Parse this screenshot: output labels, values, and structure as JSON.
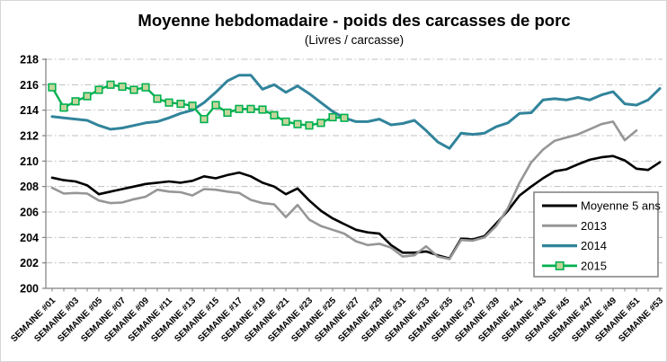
{
  "chart_data": {
    "type": "line",
    "title": "Moyenne hebdomadaire - poids des carcasses de porc",
    "subtitle": "(Livres / carcasse)",
    "grid": true,
    "legend_position": "inside-bottom-right",
    "y_axis": {
      "min": 200,
      "max": 218,
      "step": 2,
      "ticks": [
        200,
        202,
        204,
        206,
        208,
        210,
        212,
        214,
        216,
        218
      ]
    },
    "x_axis": {
      "weeks_total": 53,
      "tick_labels": [
        "SEMAINE #01",
        "SEMAINE #03",
        "SEMAINE #05",
        "SEMAINE #07",
        "SEMAINE #09",
        "SEMAINE #11",
        "SEMAINE #13",
        "SEMAINE #15",
        "SEMAINE #17",
        "SEMAINE #19",
        "SEMAINE #21",
        "SEMAINE #23",
        "SEMAINE #25",
        "SEMAINE #27",
        "SEMAINE #29",
        "SEMAINE #31",
        "SEMAINE #33",
        "SEMAINE #35",
        "SEMAINE #37",
        "SEMAINE #39",
        "SEMAINE #41",
        "SEMAINE #43",
        "SEMAINE #45",
        "SEMAINE #47",
        "SEMAINE #49",
        "SEMAINE #51",
        "SEMAINE #53"
      ]
    },
    "colors": {
      "axis": "#808080",
      "gridline": "#bfbfbf",
      "legend_border": "#7f7f7f",
      "moyenne": "#000000",
      "y2013": "#969696",
      "y2014": "#31849B",
      "y2015": "#00B050",
      "y2015_marker_fill": "#C3D69B"
    },
    "series": [
      {
        "name": "Moyenne 5 ans",
        "color": "#000000",
        "line_width": 2.6,
        "marker": "none",
        "start_week": 1,
        "values": [
          208.7,
          208.5,
          208.4,
          208.1,
          207.4,
          207.6,
          207.8,
          208.0,
          208.2,
          208.3,
          208.4,
          208.3,
          208.45,
          208.8,
          208.65,
          208.9,
          209.1,
          208.8,
          208.3,
          208.0,
          207.4,
          207.85,
          206.9,
          206.1,
          205.5,
          205.05,
          204.6,
          204.4,
          204.3,
          203.4,
          202.8,
          202.8,
          202.9,
          202.6,
          202.35,
          203.9,
          203.85,
          204.1,
          205.1,
          206.1,
          207.3,
          208.0,
          208.65,
          209.2,
          209.35,
          209.75,
          210.1,
          210.3,
          210.4,
          210.05,
          209.4,
          209.3,
          209.9
        ]
      },
      {
        "name": "2013",
        "color": "#969696",
        "line_width": 2.6,
        "marker": "none",
        "start_week": 1,
        "values": [
          207.9,
          207.45,
          207.5,
          207.45,
          206.9,
          206.7,
          206.75,
          207.0,
          207.2,
          207.75,
          207.6,
          207.55,
          207.3,
          207.8,
          207.75,
          207.6,
          207.5,
          206.95,
          206.7,
          206.6,
          205.6,
          206.55,
          205.4,
          204.9,
          204.6,
          204.3,
          203.7,
          203.4,
          203.5,
          203.2,
          202.5,
          202.6,
          203.3,
          202.5,
          202.3,
          203.8,
          203.75,
          204.0,
          204.9,
          206.3,
          208.3,
          209.9,
          210.9,
          211.6,
          211.85,
          212.1,
          212.5,
          212.9,
          213.1,
          211.65,
          212.4
        ]
      },
      {
        "name": "2014",
        "color": "#31849B",
        "line_width": 3,
        "marker": "none",
        "start_week": 1,
        "values": [
          213.5,
          213.4,
          213.3,
          213.2,
          212.8,
          212.5,
          212.6,
          212.8,
          213.0,
          213.1,
          213.4,
          213.75,
          214.0,
          214.6,
          215.4,
          216.3,
          216.75,
          216.75,
          215.65,
          216.0,
          215.4,
          215.9,
          215.3,
          214.6,
          213.9,
          213.4,
          213.1,
          213.1,
          213.3,
          212.85,
          212.95,
          213.2,
          212.4,
          211.5,
          211.0,
          212.2,
          212.1,
          212.2,
          212.7,
          213.0,
          213.75,
          213.8,
          214.8,
          214.9,
          214.8,
          215.0,
          214.8,
          215.2,
          215.45,
          214.5,
          214.4,
          214.8,
          215.7
        ]
      },
      {
        "name": "2015",
        "color": "#00B050",
        "line_width": 2.4,
        "marker": "square",
        "marker_fill": "#C3D69B",
        "marker_border": "#00B050",
        "start_week": 1,
        "values": [
          215.8,
          214.2,
          214.7,
          215.1,
          215.6,
          216.0,
          215.85,
          215.6,
          215.8,
          214.9,
          214.6,
          214.5,
          214.35,
          213.3,
          214.4,
          213.8,
          214.1,
          214.1,
          214.05,
          213.6,
          213.1,
          212.9,
          212.8,
          213.0,
          213.45,
          213.4
        ]
      }
    ],
    "legend_entries": [
      "Moyenne 5 ans",
      "2013",
      "2014",
      "2015"
    ]
  }
}
